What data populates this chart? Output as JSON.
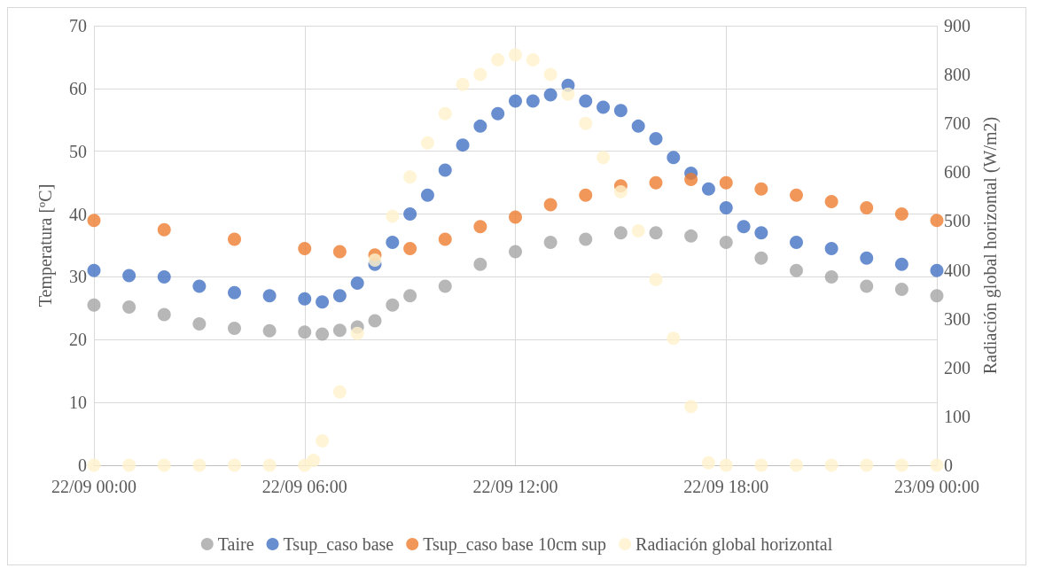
{
  "chart_data": {
    "type": "scatter",
    "ylabel": "Temperatura [ºC]",
    "y2label": "Radiación global horizontal (W/m2)",
    "xlim": [
      "--09-22T00:00",
      "--09-23T00:00"
    ],
    "xticks": [
      {
        "value": "--09-22T00:00",
        "label": "22/09 00:00"
      },
      {
        "value": "--09-22T06:00",
        "label": "22/09 06:00"
      },
      {
        "value": "--09-22T12:00",
        "label": "22/09 12:00"
      },
      {
        "value": "--09-22T18:00",
        "label": "22/09 18:00"
      },
      {
        "value": "--09-23T00:00",
        "label": "23/09 00:00"
      }
    ],
    "ylim": [
      0,
      70
    ],
    "yticks": [
      0,
      10,
      20,
      30,
      40,
      50,
      60,
      70
    ],
    "y2lim": [
      0,
      900
    ],
    "y2ticks": [
      0,
      100,
      200,
      300,
      400,
      500,
      600,
      700,
      800,
      900
    ],
    "grid": true,
    "legend": "bottom",
    "marker": "circle",
    "series": [
      {
        "name": "Taire",
        "color": "#a5a5a5",
        "x": [
          "--09-22T00:00",
          "--09-22T01:00",
          "--09-22T02:00",
          "--09-22T03:00",
          "--09-22T04:00",
          "--09-22T05:00",
          "--09-22T06:00",
          "--09-22T06:30",
          "--09-22T07:00",
          "--09-22T07:30",
          "--09-22T08:00",
          "--09-22T08:30",
          "--09-22T09:00",
          "--09-22T10:00",
          "--09-22T11:00",
          "--09-22T12:00",
          "--09-22T13:00",
          "--09-22T14:00",
          "--09-22T15:00",
          "--09-22T16:00",
          "--09-22T17:00",
          "--09-22T18:00",
          "--09-22T19:00",
          "--09-22T20:00",
          "--09-22T21:00",
          "--09-22T22:00",
          "--09-22T23:00",
          "--09-23T00:00"
        ],
        "values": [
          25.5,
          25.2,
          24,
          22.5,
          21.8,
          21.4,
          21.2,
          20.9,
          21.5,
          22,
          23,
          25.5,
          27,
          28.5,
          32,
          34,
          35.5,
          36,
          37,
          37,
          36.5,
          35.5,
          33,
          31,
          30,
          28.5,
          28,
          27
        ]
      },
      {
        "name": "Tsup_caso base",
        "color": "#4472c4",
        "x": [
          "--09-22T00:00",
          "--09-22T01:00",
          "--09-22T02:00",
          "--09-22T03:00",
          "--09-22T04:00",
          "--09-22T05:00",
          "--09-22T06:00",
          "--09-22T06:30",
          "--09-22T07:00",
          "--09-22T07:30",
          "--09-22T08:00",
          "--09-22T08:30",
          "--09-22T09:00",
          "--09-22T09:30",
          "--09-22T10:00",
          "--09-22T10:30",
          "--09-22T11:00",
          "--09-22T11:30",
          "--09-22T12:00",
          "--09-22T12:30",
          "--09-22T13:00",
          "--09-22T13:30",
          "--09-22T14:00",
          "--09-22T14:30",
          "--09-22T15:00",
          "--09-22T15:30",
          "--09-22T16:00",
          "--09-22T16:30",
          "--09-22T17:00",
          "--09-22T17:30",
          "--09-22T18:00",
          "--09-22T18:30",
          "--09-22T19:00",
          "--09-22T20:00",
          "--09-22T21:00",
          "--09-22T22:00",
          "--09-22T23:00",
          "--09-23T00:00"
        ],
        "values": [
          31,
          30.2,
          30,
          28.5,
          27.5,
          27,
          26.5,
          26,
          27,
          29,
          32,
          35.5,
          40,
          43,
          47,
          51,
          54,
          56,
          58,
          58,
          59,
          60.5,
          58,
          57,
          56.5,
          54,
          52,
          49,
          46.5,
          44,
          41,
          38,
          37,
          35.5,
          34.5,
          33,
          32,
          31
        ]
      },
      {
        "name": "Tsup_caso base 10cm sup",
        "color": "#ed7d31",
        "x": [
          "--09-22T00:00",
          "--09-22T02:00",
          "--09-22T04:00",
          "--09-22T06:00",
          "--09-22T07:00",
          "--09-22T08:00",
          "--09-22T09:00",
          "--09-22T10:00",
          "--09-22T11:00",
          "--09-22T12:00",
          "--09-22T13:00",
          "--09-22T14:00",
          "--09-22T15:00",
          "--09-22T16:00",
          "--09-22T17:00",
          "--09-22T18:00",
          "--09-22T19:00",
          "--09-22T20:00",
          "--09-22T21:00",
          "--09-22T22:00",
          "--09-22T23:00",
          "--09-23T00:00"
        ],
        "values": [
          39,
          37.5,
          36,
          34.5,
          34,
          33.5,
          34.5,
          36,
          38,
          39.5,
          41.5,
          43,
          44.5,
          45,
          45.5,
          45,
          44,
          43,
          42,
          41,
          40,
          39
        ]
      },
      {
        "name": "Radiación global horizontal",
        "color": "#fff2cc",
        "axis": "y2",
        "x": [
          "--09-22T00:00",
          "--09-22T01:00",
          "--09-22T02:00",
          "--09-22T03:00",
          "--09-22T04:00",
          "--09-22T05:00",
          "--09-22T06:00",
          "--09-22T06:15",
          "--09-22T06:30",
          "--09-22T07:00",
          "--09-22T07:30",
          "--09-22T08:00",
          "--09-22T08:30",
          "--09-22T09:00",
          "--09-22T09:30",
          "--09-22T10:00",
          "--09-22T10:30",
          "--09-22T11:00",
          "--09-22T11:30",
          "--09-22T12:00",
          "--09-22T12:30",
          "--09-22T13:00",
          "--09-22T13:30",
          "--09-22T14:00",
          "--09-22T14:30",
          "--09-22T15:00",
          "--09-22T15:30",
          "--09-22T16:00",
          "--09-22T16:30",
          "--09-22T17:00",
          "--09-22T17:30",
          "--09-22T18:00",
          "--09-22T19:00",
          "--09-22T20:00",
          "--09-22T21:00",
          "--09-22T22:00",
          "--09-22T23:00",
          "--09-23T00:00"
        ],
        "values": [
          0,
          0,
          0,
          0,
          0,
          0,
          0,
          10,
          50,
          150,
          270,
          420,
          510,
          590,
          660,
          720,
          780,
          800,
          830,
          840,
          830,
          800,
          760,
          700,
          630,
          560,
          480,
          380,
          260,
          120,
          5,
          0,
          0,
          0,
          0,
          0,
          0,
          0
        ]
      }
    ]
  }
}
